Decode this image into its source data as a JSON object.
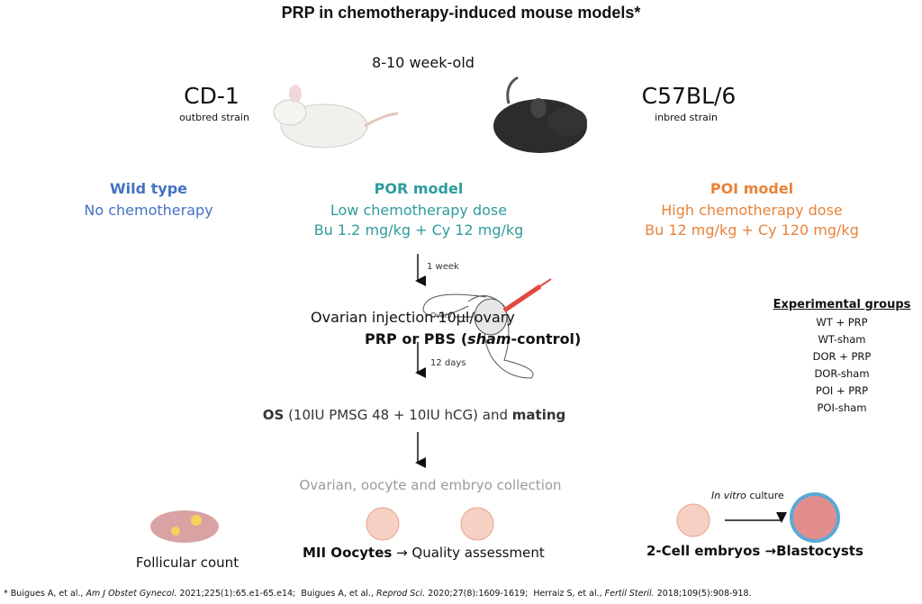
{
  "header": {
    "title": "PRP in chemotherapy-induced mouse models*",
    "age": "8-10 week-old"
  },
  "strains": [
    {
      "name": "CD-1",
      "type": "outbred strain"
    },
    {
      "name": "C57BL/6",
      "type": "inbred strain"
    }
  ],
  "models": [
    {
      "name": "Wild type",
      "lines": [
        "No chemotherapy"
      ]
    },
    {
      "name": "POR model",
      "lines": [
        "Low chemotherapy dose",
        "Bu 1.2 mg/kg + Cy 12 mg/kg"
      ]
    },
    {
      "name": "POI model",
      "lines": [
        "High chemotherapy dose",
        "Bu 12 mg/kg + Cy 120 mg/kg"
      ]
    }
  ],
  "steps": {
    "interval1": "1 week",
    "injection": "Ovarian injection 10µl/ovary",
    "treatment": [
      "PRP or PBS (",
      "sham",
      "-control)"
    ],
    "ovary_label": "Ovary",
    "interval2": "12 days",
    "os": [
      "OS",
      " (10IU PMSG 48 + 10IU hCG) and ",
      "mating"
    ],
    "collection": "Ovarian, oocyte and embryo collection"
  },
  "outcomes": {
    "follicular": "Follicular count",
    "oocytes": [
      "MII Oocytes",
      "→ Quality assessment"
    ],
    "culture": [
      "In vitro",
      " culture"
    ],
    "embryos": "2-Cell embryos →Blastocysts"
  },
  "groups": {
    "title": "Experimental groups",
    "items": [
      "WT + PRP",
      "WT-sham",
      "DOR + PRP",
      "DOR-sham",
      "POI + PRP",
      "POI-sham"
    ]
  },
  "footnote": {
    "mark": "* ",
    "refs": [
      {
        "authors": "Buigues A, et al., ",
        "journal": "Am J Obstet Gynecol.",
        "details": " 2021;225(1):65.e1-65.e14;  "
      },
      {
        "authors": "Buigues A, et al., ",
        "journal": "Reprod Sci.",
        "details": " 2020;27(8):1609-1619;  "
      },
      {
        "authors": "Herraiz S, et al., ",
        "journal": "Fertil Steril.",
        "details": " 2018;109(5):908-918."
      }
    ]
  }
}
